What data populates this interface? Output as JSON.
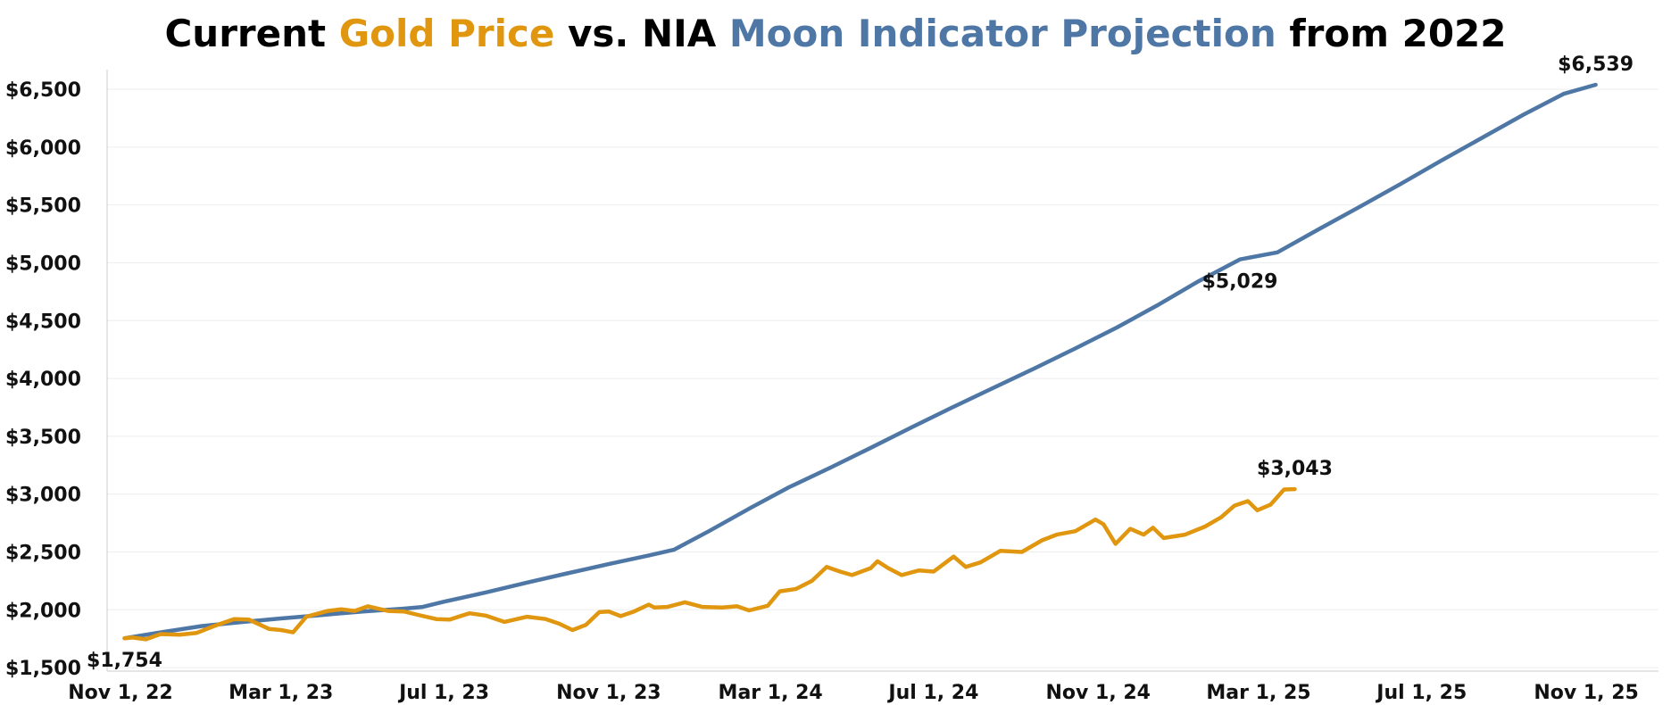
{
  "title": {
    "parts": [
      {
        "text": "Current ",
        "color": "#000000"
      },
      {
        "text": "Gold Price",
        "color": "#E0960E"
      },
      {
        "text": " vs. NIA ",
        "color": "#000000"
      },
      {
        "text": "Moon Indicator Projection",
        "color": "#4E77A6"
      },
      {
        "text": " from 2022",
        "color": "#000000"
      }
    ]
  },
  "chart_data": {
    "type": "line",
    "title": "Current Gold Price vs. NIA Moon Indicator Projection from 2022",
    "xlabel": "",
    "ylabel": "",
    "x_axis_type": "date",
    "xlim": [
      "2022-10-22",
      "2025-12-25"
    ],
    "ylim": [
      1470,
      6670
    ],
    "grid": true,
    "legend": "none (series named in title colors)",
    "x_ticks": [
      {
        "date": "2022-11-01",
        "label": "Nov 1, 22"
      },
      {
        "date": "2023-03-01",
        "label": "Mar 1, 23"
      },
      {
        "date": "2023-07-01",
        "label": "Jul 1, 23"
      },
      {
        "date": "2023-11-01",
        "label": "Nov 1, 23"
      },
      {
        "date": "2024-03-01",
        "label": "Mar 1, 24"
      },
      {
        "date": "2024-07-01",
        "label": "Jul 1, 24"
      },
      {
        "date": "2024-11-01",
        "label": "Nov 1, 24"
      },
      {
        "date": "2025-03-01",
        "label": "Mar 1, 25"
      },
      {
        "date": "2025-07-01",
        "label": "Jul 1, 25"
      },
      {
        "date": "2025-11-01",
        "label": "Nov 1, 25"
      }
    ],
    "y_ticks": [
      {
        "value": 1500,
        "label": "$1,500"
      },
      {
        "value": 2000,
        "label": "$2,000"
      },
      {
        "value": 2500,
        "label": "$2,500"
      },
      {
        "value": 3000,
        "label": "$3,000"
      },
      {
        "value": 3500,
        "label": "$3,500"
      },
      {
        "value": 4000,
        "label": "$4,000"
      },
      {
        "value": 4500,
        "label": "$4,500"
      },
      {
        "value": 5000,
        "label": "$5,000"
      },
      {
        "value": 5500,
        "label": "$5,500"
      },
      {
        "value": 6000,
        "label": "$6,000"
      },
      {
        "value": 6500,
        "label": "$6,500"
      }
    ],
    "series": [
      {
        "name": "Moon Indicator Projection",
        "color": "#4E77A6",
        "points": [
          [
            "2022-11-04",
            1754
          ],
          [
            "2022-12-01",
            1805
          ],
          [
            "2023-01-01",
            1860
          ],
          [
            "2023-02-01",
            1895
          ],
          [
            "2023-03-01",
            1925
          ],
          [
            "2023-04-01",
            1955
          ],
          [
            "2023-05-01",
            1985
          ],
          [
            "2023-06-01",
            2010
          ],
          [
            "2023-06-15",
            2025
          ],
          [
            "2023-07-01",
            2070
          ],
          [
            "2023-08-01",
            2150
          ],
          [
            "2023-09-01",
            2235
          ],
          [
            "2023-10-01",
            2315
          ],
          [
            "2023-11-01",
            2395
          ],
          [
            "2023-12-01",
            2470
          ],
          [
            "2023-12-20",
            2520
          ],
          [
            "2024-01-15",
            2680
          ],
          [
            "2024-02-15",
            2880
          ],
          [
            "2024-03-15",
            3060
          ],
          [
            "2024-04-15",
            3230
          ],
          [
            "2024-05-15",
            3400
          ],
          [
            "2024-06-15",
            3580
          ],
          [
            "2024-07-15",
            3750
          ],
          [
            "2024-08-15",
            3920
          ],
          [
            "2024-09-15",
            4090
          ],
          [
            "2024-10-15",
            4260
          ],
          [
            "2024-11-15",
            4440
          ],
          [
            "2024-12-15",
            4630
          ],
          [
            "2025-01-15",
            4840
          ],
          [
            "2025-02-15",
            5029
          ],
          [
            "2025-03-15",
            5090
          ],
          [
            "2025-04-15",
            5290
          ],
          [
            "2025-05-15",
            5480
          ],
          [
            "2025-06-15",
            5680
          ],
          [
            "2025-07-15",
            5880
          ],
          [
            "2025-08-15",
            6080
          ],
          [
            "2025-09-15",
            6280
          ],
          [
            "2025-10-15",
            6460
          ],
          [
            "2025-11-08",
            6539
          ]
        ]
      },
      {
        "name": "Gold Price",
        "color": "#E0960E",
        "points": [
          [
            "2022-11-04",
            1754
          ],
          [
            "2022-11-10",
            1760
          ],
          [
            "2022-11-20",
            1745
          ],
          [
            "2022-12-01",
            1790
          ],
          [
            "2022-12-15",
            1785
          ],
          [
            "2022-12-28",
            1800
          ],
          [
            "2023-01-10",
            1860
          ],
          [
            "2023-01-25",
            1920
          ],
          [
            "2023-02-05",
            1915
          ],
          [
            "2023-02-20",
            1835
          ],
          [
            "2023-03-01",
            1825
          ],
          [
            "2023-03-10",
            1805
          ],
          [
            "2023-03-20",
            1940
          ],
          [
            "2023-04-05",
            1990
          ],
          [
            "2023-04-15",
            2005
          ],
          [
            "2023-04-25",
            1990
          ],
          [
            "2023-05-05",
            2030
          ],
          [
            "2023-05-20",
            1990
          ],
          [
            "2023-06-01",
            1985
          ],
          [
            "2023-06-10",
            1960
          ],
          [
            "2023-06-25",
            1920
          ],
          [
            "2023-07-05",
            1915
          ],
          [
            "2023-07-20",
            1970
          ],
          [
            "2023-08-01",
            1950
          ],
          [
            "2023-08-15",
            1895
          ],
          [
            "2023-09-01",
            1940
          ],
          [
            "2023-09-15",
            1920
          ],
          [
            "2023-09-25",
            1880
          ],
          [
            "2023-10-05",
            1825
          ],
          [
            "2023-10-15",
            1870
          ],
          [
            "2023-10-25",
            1980
          ],
          [
            "2023-11-01",
            1985
          ],
          [
            "2023-11-10",
            1945
          ],
          [
            "2023-11-20",
            1985
          ],
          [
            "2023-12-01",
            2045
          ],
          [
            "2023-12-05",
            2020
          ],
          [
            "2023-12-15",
            2025
          ],
          [
            "2023-12-28",
            2065
          ],
          [
            "2024-01-10",
            2025
          ],
          [
            "2024-01-25",
            2020
          ],
          [
            "2024-02-05",
            2030
          ],
          [
            "2024-02-14",
            1995
          ],
          [
            "2024-02-28",
            2035
          ],
          [
            "2024-03-08",
            2160
          ],
          [
            "2024-03-20",
            2180
          ],
          [
            "2024-04-01",
            2250
          ],
          [
            "2024-04-12",
            2370
          ],
          [
            "2024-04-22",
            2330
          ],
          [
            "2024-05-01",
            2300
          ],
          [
            "2024-05-15",
            2360
          ],
          [
            "2024-05-20",
            2420
          ],
          [
            "2024-05-28",
            2360
          ],
          [
            "2024-06-07",
            2300
          ],
          [
            "2024-06-20",
            2340
          ],
          [
            "2024-07-01",
            2330
          ],
          [
            "2024-07-16",
            2460
          ],
          [
            "2024-07-25",
            2370
          ],
          [
            "2024-08-05",
            2410
          ],
          [
            "2024-08-20",
            2510
          ],
          [
            "2024-09-05",
            2500
          ],
          [
            "2024-09-20",
            2600
          ],
          [
            "2024-10-01",
            2650
          ],
          [
            "2024-10-15",
            2680
          ],
          [
            "2024-10-30",
            2780
          ],
          [
            "2024-11-05",
            2740
          ],
          [
            "2024-11-14",
            2570
          ],
          [
            "2024-11-25",
            2700
          ],
          [
            "2024-12-05",
            2650
          ],
          [
            "2024-12-12",
            2710
          ],
          [
            "2024-12-20",
            2620
          ],
          [
            "2025-01-05",
            2650
          ],
          [
            "2025-01-20",
            2720
          ],
          [
            "2025-02-01",
            2800
          ],
          [
            "2025-02-11",
            2900
          ],
          [
            "2025-02-21",
            2940
          ],
          [
            "2025-02-28",
            2860
          ],
          [
            "2025-03-10",
            2910
          ],
          [
            "2025-03-20",
            3040
          ],
          [
            "2025-03-28",
            3043
          ]
        ]
      }
    ],
    "annotations": [
      {
        "series": "Gold Price",
        "date": "2022-11-04",
        "value": 1754,
        "label": "$1,754",
        "position": "below"
      },
      {
        "series": "Gold Price",
        "date": "2025-03-28",
        "value": 3043,
        "label": "$3,043",
        "position": "above"
      },
      {
        "series": "Moon Indicator Projection",
        "date": "2025-02-15",
        "value": 5029,
        "label": "$5,029",
        "position": "below"
      },
      {
        "series": "Moon Indicator Projection",
        "date": "2025-11-08",
        "value": 6539,
        "label": "$6,539",
        "position": "above"
      }
    ]
  }
}
